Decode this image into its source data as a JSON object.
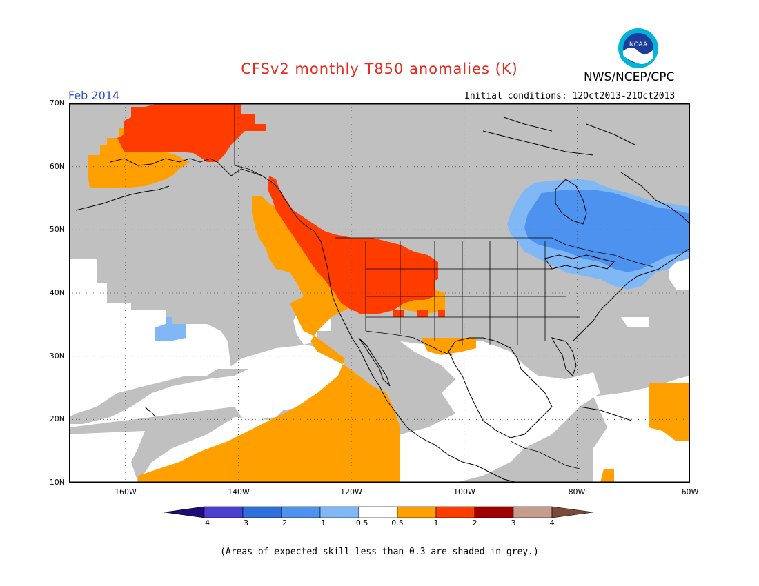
{
  "header": {
    "title": "CFSv2 monthly T850 anomalies (K)",
    "organization": "NWS/NCEP/CPC",
    "logo_text": "NOAA",
    "period": "Feb 2014",
    "initial_conditions": "Initial conditions: 12Oct2013-21Oct2013"
  },
  "map": {
    "lat_labels": [
      "70N",
      "60N",
      "50N",
      "40N",
      "30N",
      "20N",
      "10N"
    ],
    "lon_labels": [
      "160W",
      "140W",
      "120W",
      "100W",
      "80W",
      "60W"
    ],
    "domain": {
      "lon": [
        -170,
        -60
      ],
      "lat": [
        10,
        70
      ]
    }
  },
  "colorbar": {
    "labels": [
      "−4",
      "−3",
      "−2",
      "−1",
      "−0.5",
      "0.5",
      "1",
      "2",
      "3",
      "4"
    ],
    "colors": {
      "below_-4": "#1e0a78",
      "-4_-3": "#4b3fd0",
      "-3_-2": "#2f6fdb",
      "-2_-1": "#4c92ee",
      "-1_-0.5": "#80b8f5",
      "-0.5_0.5": "#ffffff",
      "0.5_1": "#ffa000",
      "1_2": "#ff3c00",
      "2_3": "#a00000",
      "3_4": "#c69c8c",
      "above_4": "#7a4a3a"
    }
  },
  "colors": {
    "low_skill_grey": "#c0c0c0",
    "title_red": "#e8291c",
    "period_blue": "#2a4fd6"
  },
  "footnote": "(Areas of expected skill less than 0.3 are shaded in grey.)"
}
